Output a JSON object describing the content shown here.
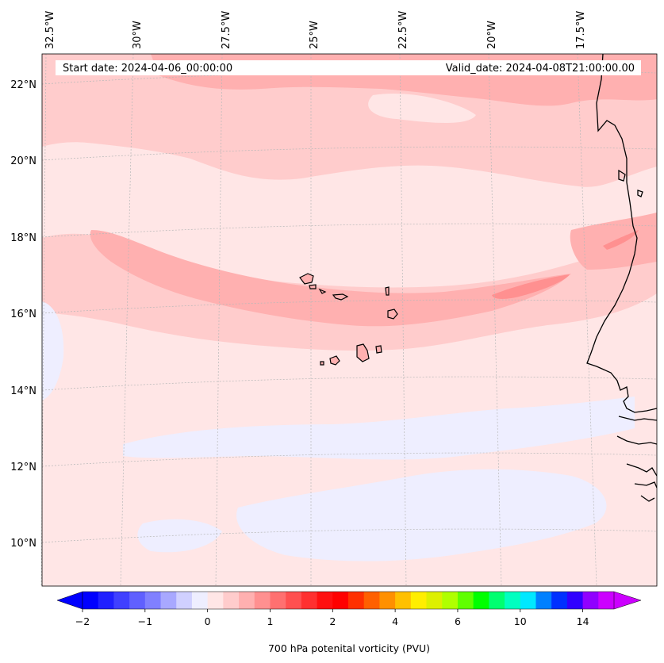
{
  "map": {
    "start_date": "Start date: 2024-04-06_00:00:00",
    "valid_date": "Valid_date: 2024-04-08T21:00:00.00",
    "lon_labels": [
      "32.5°W",
      "30°W",
      "27.5°W",
      "25°W",
      "22.5°W",
      "20°W",
      "17.5°W"
    ],
    "lat_labels": [
      "22°N",
      "20°N",
      "18°N",
      "16°N",
      "14°N",
      "12°N",
      "10°N"
    ],
    "region": "Cape Verde Islands and West African coast (Senegal, Gambia, Guinea-Bissau)"
  },
  "colorbar": {
    "label": "700 hPa potenital vorticity (PVU)",
    "tick_labels": [
      "−2",
      "−1",
      "0",
      "1",
      "2",
      "4",
      "6",
      "10",
      "14"
    ],
    "colors": [
      "#0000ff",
      "#2020ff",
      "#4040ff",
      "#6060ff",
      "#8080ff",
      "#a8a8ff",
      "#d0d0ff",
      "#eeeeff",
      "#ffe6e6",
      "#ffcccc",
      "#ffb0b0",
      "#ff9090",
      "#ff7070",
      "#ff5050",
      "#ff3030",
      "#ff1010",
      "#ff0000",
      "#ff3000",
      "#ff6000",
      "#ff9000",
      "#ffc000",
      "#ffee00",
      "#ddf000",
      "#b0ff00",
      "#60ff00",
      "#00ff00",
      "#00ff70",
      "#00ffc0",
      "#00e8ff",
      "#0080ff",
      "#0030ff",
      "#3000ff",
      "#9000ff",
      "#cc00ff"
    ]
  }
}
